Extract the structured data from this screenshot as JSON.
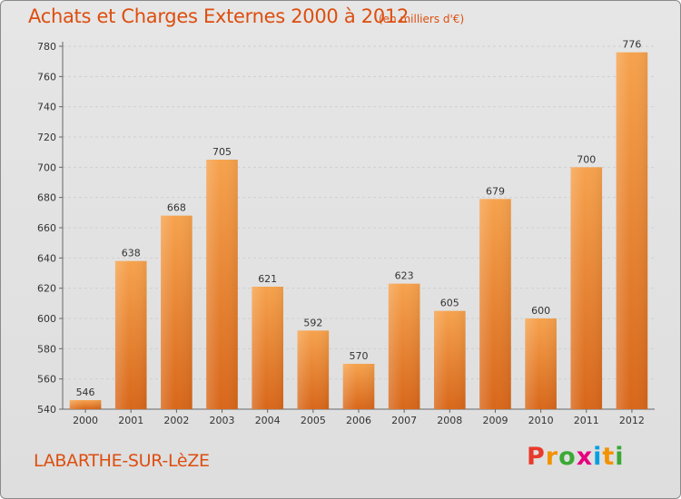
{
  "header": {
    "title": "Achats et Charges Externes 2000 à 2012",
    "subtitle": "(en milliers d'€)"
  },
  "commune": "LABARTHE-SUR-LèZE",
  "logo": {
    "text": "Proxiti",
    "colors": [
      "#e8392a",
      "#f39200",
      "#3aa935",
      "#e6007e",
      "#009fe3",
      "#f39200",
      "#3aa935"
    ]
  },
  "colors": {
    "accent": "#dd4e0f",
    "bar_top": "#f6a24d",
    "bar_bottom": "#d8671a",
    "background": "#e3e3e3",
    "grid": "#cfcfcf"
  },
  "chart_data": {
    "type": "bar",
    "categories": [
      "2000",
      "2001",
      "2002",
      "2003",
      "2004",
      "2005",
      "2006",
      "2007",
      "2008",
      "2009",
      "2010",
      "2011",
      "2012"
    ],
    "values": [
      546,
      638,
      668,
      705,
      621,
      592,
      570,
      623,
      605,
      679,
      600,
      700,
      776
    ],
    "ylim": [
      540,
      780
    ],
    "yticks": [
      540,
      560,
      580,
      600,
      620,
      640,
      660,
      680,
      700,
      720,
      740,
      760,
      780
    ],
    "grid": true,
    "title": "Achats et Charges Externes 2000 à 2012",
    "xlabel": "",
    "ylabel": ""
  }
}
